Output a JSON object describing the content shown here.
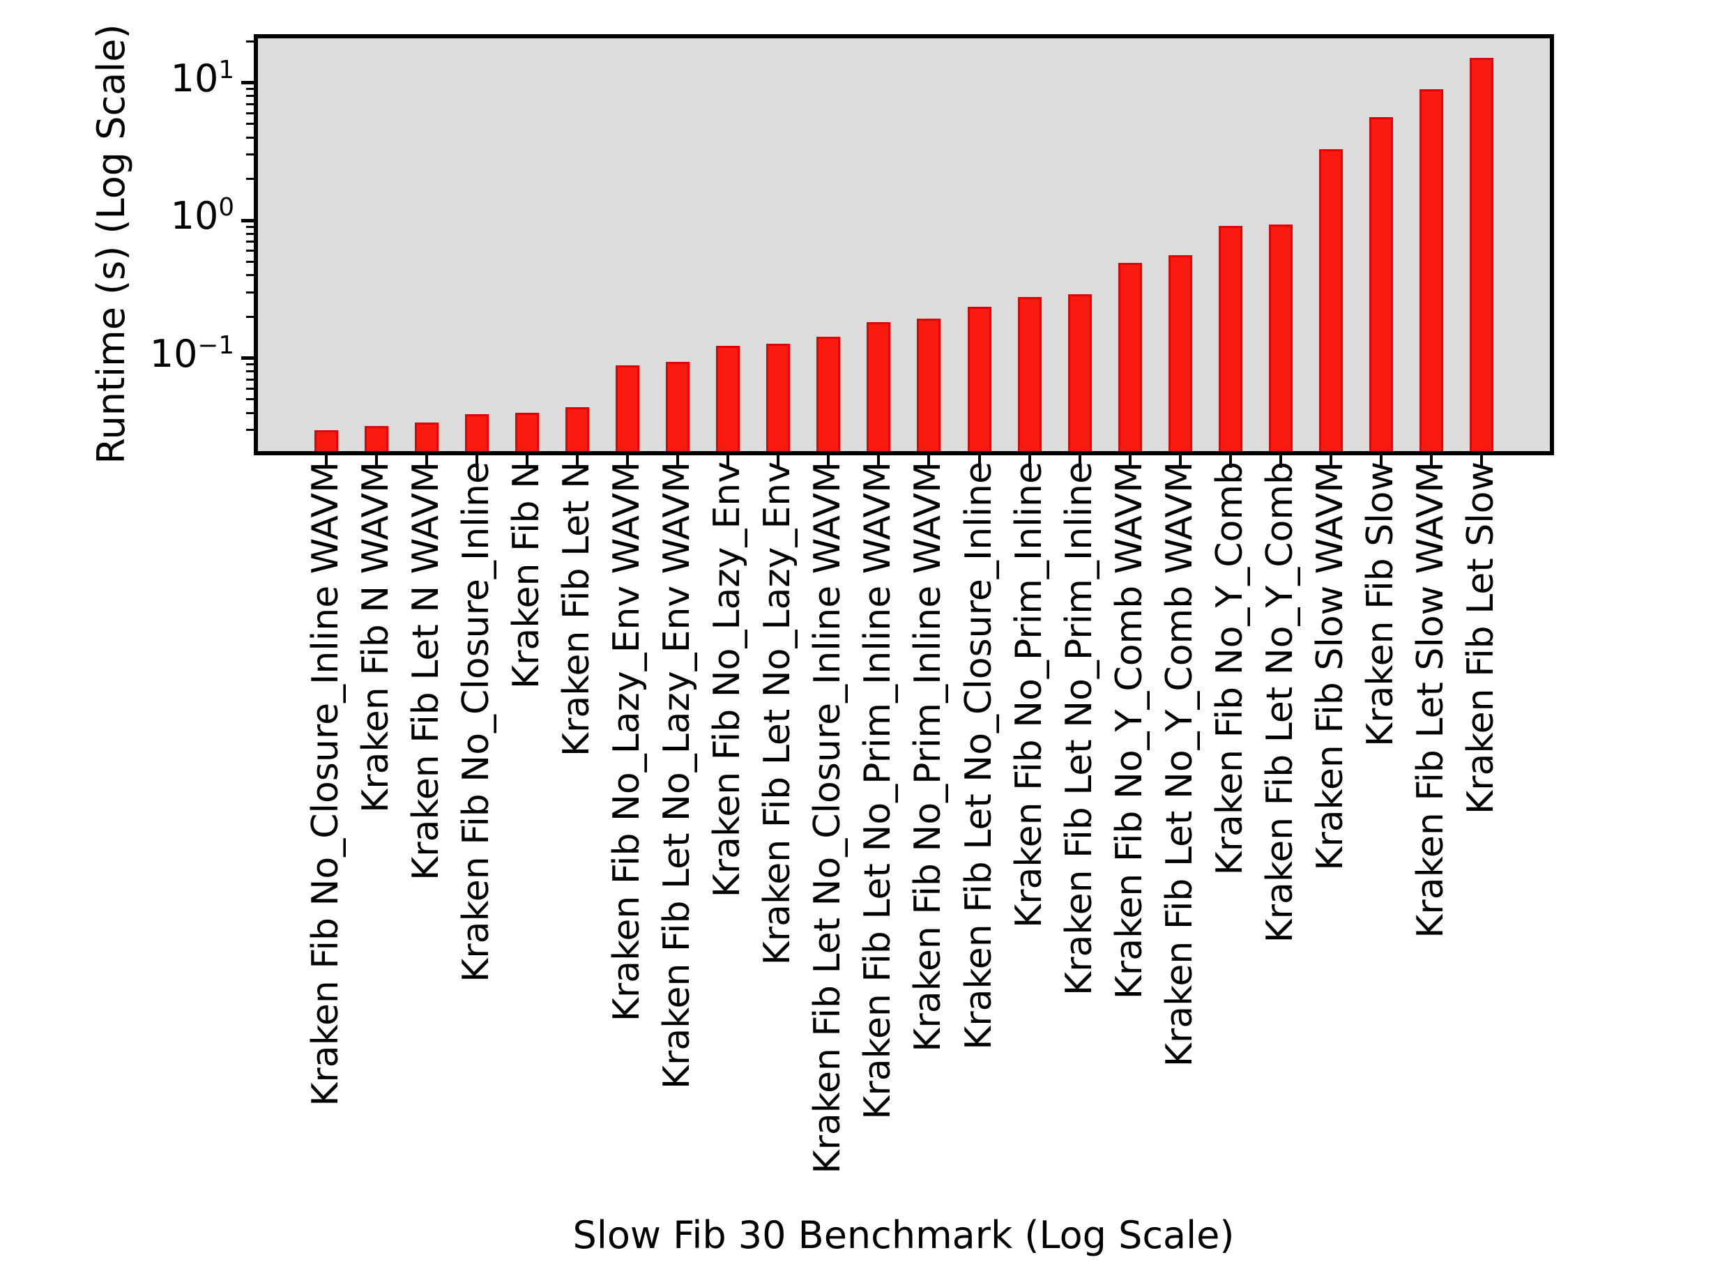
{
  "chart_data": {
    "type": "bar",
    "title": "",
    "xlabel": "Slow Fib 30 Benchmark (Log Scale)",
    "ylabel": "Runtime (s) (Log Scale)",
    "yscale": "log",
    "ylim": [
      0.021,
      20.9
    ],
    "grid": false,
    "legend": {
      "visible": true,
      "entries": [],
      "position": "upper right"
    },
    "plot_bg_color": "#dcdcdc",
    "bar_color": "#fa1a10",
    "bar_edge_color": "#e00400",
    "categories": [
      "Kraken Fib No_Closure_Inline WAVM",
      "Kraken Fib N WAVM",
      "Kraken Fib Let N WAVM",
      "Kraken Fib No_Closure_Inline",
      "Kraken Fib N",
      "Kraken Fib Let N",
      "Kraken Fib No_Lazy_Env WAVM",
      "Kraken Fib Let No_Lazy_Env WAVM",
      "Kraken Fib No_Lazy_Env",
      "Kraken Fib Let No_Lazy_Env",
      "Kraken Fib Let No_Closure_Inline WAVM",
      "Kraken Fib Let No_Prim_Inline WAVM",
      "Kraken Fib No_Prim_Inline WAVM",
      "Kraken Fib Let No_Closure_Inline",
      "Kraken Fib No_Prim_Inline",
      "Kraken Fib Let No_Prim_Inline",
      "Kraken Fib No_Y_Comb WAVM",
      "Kraken Fib Let No_Y_Comb WAVM",
      "Kraken Fib No_Y_Comb",
      "Kraken Fib Let No_Y_Comb",
      "Kraken Fib Slow WAVM",
      "Kraken Fib Slow",
      "Kraken Fib Let Slow WAVM",
      "Kraken Fib Let Slow"
    ],
    "values": [
      0.03,
      0.032,
      0.034,
      0.039,
      0.04,
      0.044,
      0.088,
      0.094,
      0.123,
      0.127,
      0.142,
      0.182,
      0.194,
      0.235,
      0.277,
      0.29,
      0.49,
      0.56,
      0.91,
      0.93,
      3.3,
      5.6,
      9.0,
      15.2
    ],
    "yticks": [
      {
        "value": 10,
        "base": "10",
        "exp": "1"
      },
      {
        "value": 1,
        "base": "10",
        "exp": "0"
      },
      {
        "value": 0.1,
        "base": "10",
        "exp": "−1"
      }
    ]
  }
}
